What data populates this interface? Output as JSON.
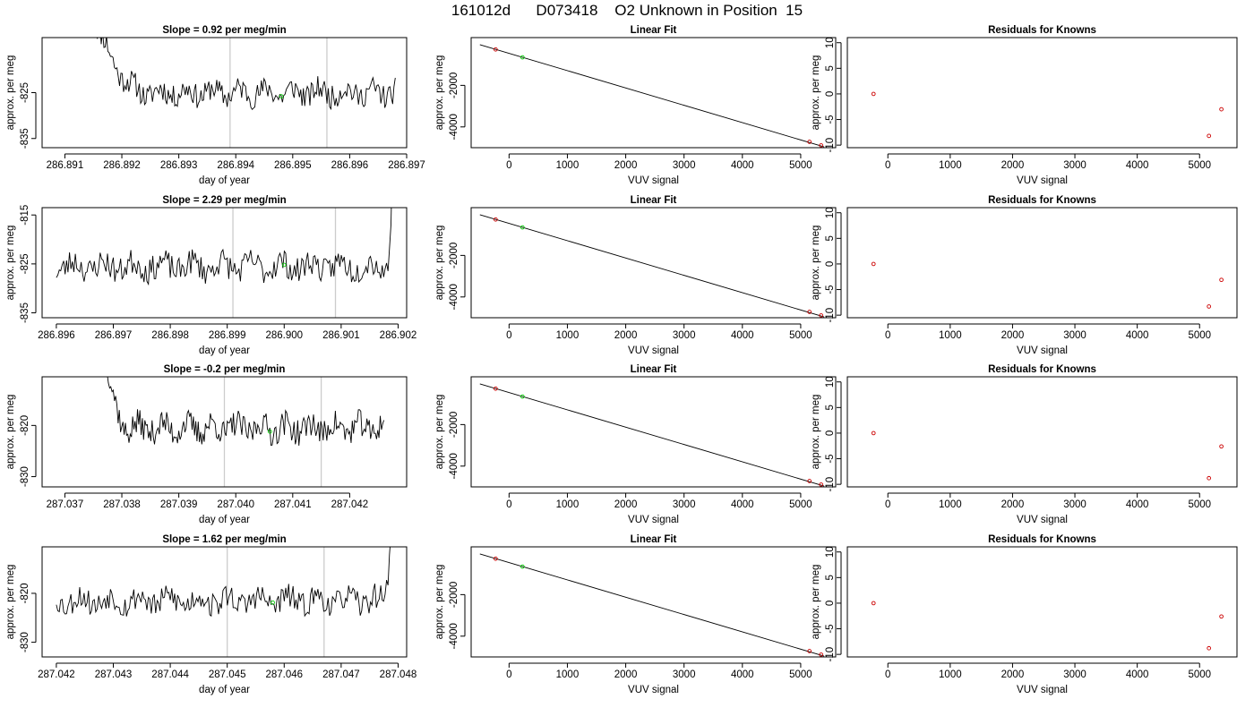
{
  "page_title": "161012d      D073418    O2 Unknown in Position  15",
  "colors": {
    "line": "#000000",
    "frame": "#000000",
    "vline": "#cccccc",
    "known_point": "#cc0000",
    "unknown_point": "#00cc00",
    "background": "#ffffff"
  },
  "chart_data": [
    {
      "type": "line",
      "row": 0,
      "col": 0,
      "title": "Slope =  0.92  per meg/min",
      "xlabel": "day of year",
      "ylabel": "approx. per meg",
      "xlim": [
        286.8906,
        286.897
      ],
      "ylim": [
        -837,
        -813
      ],
      "xticks": [
        286.891,
        286.892,
        286.893,
        286.894,
        286.895,
        286.896,
        286.897
      ],
      "xtick_labels": [
        "286.891",
        "286.892",
        "286.893",
        "286.894",
        "286.895",
        "286.896",
        "286.897"
      ],
      "yticks": [
        -835,
        -825
      ],
      "ytick_labels": [
        "-835",
        "-825"
      ],
      "vlines": [
        286.8939,
        286.8956
      ],
      "unknown_point": {
        "x": 286.8948,
        "y": -825.8
      },
      "trace": {
        "x_start": 286.8915,
        "x_end": 286.8968,
        "y_mid": -825.0,
        "y_amp": 2.6,
        "rise": {
          "from_x": 286.8915,
          "to_x": 286.89245,
          "y_start": -808
        },
        "tail_rise": null,
        "seed": 11
      }
    },
    {
      "type": "line",
      "row": 1,
      "col": 0,
      "title": "Slope =  2.29  per meg/min",
      "xlabel": "day of year",
      "ylabel": "approx. per meg",
      "xlim": [
        286.89575,
        286.90215
      ],
      "ylim": [
        -836,
        -813.5
      ],
      "xticks": [
        286.896,
        286.897,
        286.898,
        286.899,
        286.9,
        286.901,
        286.902
      ],
      "xtick_labels": [
        "286.896",
        "286.897",
        "286.898",
        "286.899",
        "286.900",
        "286.901",
        "286.902"
      ],
      "yticks": [
        -835,
        -825,
        -815
      ],
      "ytick_labels": [
        "-835",
        "-825",
        "-815"
      ],
      "vlines": [
        286.8991,
        286.9009
      ],
      "unknown_point": {
        "x": 286.9,
        "y": -825.2
      },
      "trace": {
        "x_start": 286.896,
        "x_end": 286.9019,
        "y_mid": -825.5,
        "y_amp": 2.7,
        "rise": null,
        "tail_rise": {
          "from_x": 286.9018,
          "y_end": -805
        },
        "seed": 23
      }
    },
    {
      "type": "line",
      "row": 2,
      "col": 0,
      "title": "Slope =  -0.2  per meg/min",
      "xlabel": "day of year",
      "ylabel": "approx. per meg",
      "xlim": [
        287.0366,
        287.043
      ],
      "ylim": [
        -832,
        -810.5
      ],
      "xticks": [
        287.037,
        287.038,
        287.039,
        287.04,
        287.041,
        287.042
      ],
      "xtick_labels": [
        "287.037",
        "287.038",
        "287.039",
        "287.040",
        "287.041",
        "287.042"
      ],
      "yticks": [
        -830,
        -820
      ],
      "ytick_labels": [
        "-830",
        "-820"
      ],
      "vlines": [
        287.0398,
        287.0415
      ],
      "unknown_point": {
        "x": 287.0406,
        "y": -821.2
      },
      "trace": {
        "x_start": 287.0377,
        "x_end": 287.0426,
        "y_mid": -820.5,
        "y_amp": 2.6,
        "rise": {
          "from_x": 287.0377,
          "to_x": 287.0381,
          "y_start": -805
        },
        "tail_rise": null,
        "seed": 37
      }
    },
    {
      "type": "line",
      "row": 3,
      "col": 0,
      "title": "Slope =  1.62  per meg/min",
      "xlabel": "day of year",
      "ylabel": "approx. per meg",
      "xlim": [
        287.04175,
        287.04815
      ],
      "ylim": [
        -833,
        -810.5
      ],
      "xticks": [
        287.042,
        287.043,
        287.044,
        287.045,
        287.046,
        287.047,
        287.048
      ],
      "xtick_labels": [
        "287.042",
        "287.043",
        "287.044",
        "287.045",
        "287.046",
        "287.047",
        "287.048"
      ],
      "yticks": [
        -830,
        -820
      ],
      "ytick_labels": [
        "-830",
        "-820"
      ],
      "vlines": [
        287.045,
        287.0467
      ],
      "unknown_point": {
        "x": 287.0458,
        "y": -821.9
      },
      "trace": {
        "x_start": 287.042,
        "x_end": 287.0479,
        "y_mid": -821.5,
        "y_amp": 2.6,
        "rise": null,
        "tail_rise": {
          "from_x": 287.0477,
          "y_end": -805
        },
        "seed": 53
      }
    },
    {
      "type": "scatter",
      "row": 0,
      "col": 1,
      "title": "Linear Fit",
      "xlabel": "VUV signal",
      "ylabel": "approx. per meg",
      "xlim": [
        -650,
        5600
      ],
      "ylim": [
        -5000,
        300
      ],
      "xticks": [
        0,
        1000,
        2000,
        3000,
        4000,
        5000
      ],
      "xtick_labels": [
        "0",
        "1000",
        "2000",
        "3000",
        "4000",
        "5000"
      ],
      "yticks": [
        -4000,
        -2000
      ],
      "ytick_labels": [
        "-4000",
        "-2000"
      ],
      "fit_line": {
        "x": [
          -500,
          5400
        ],
        "y": [
          -40,
          -4960
        ]
      },
      "known_points": [
        {
          "x": -230,
          "y": -270
        },
        {
          "x": 5150,
          "y": -4720
        },
        {
          "x": 5350,
          "y": -4890
        }
      ],
      "unknown_point": {
        "x": 230,
        "y": -650
      }
    },
    {
      "type": "scatter",
      "row": 1,
      "col": 1,
      "title": "Linear Fit",
      "xlabel": "VUV signal",
      "ylabel": "approx. per meg",
      "xlim": [
        -650,
        5600
      ],
      "ylim": [
        -5000,
        300
      ],
      "xticks": [
        0,
        1000,
        2000,
        3000,
        4000,
        5000
      ],
      "xtick_labels": [
        "0",
        "1000",
        "2000",
        "3000",
        "4000",
        "5000"
      ],
      "yticks": [
        -4000,
        -2000
      ],
      "ytick_labels": [
        "-4000",
        "-2000"
      ],
      "fit_line": {
        "x": [
          -500,
          5400
        ],
        "y": [
          -40,
          -4960
        ]
      },
      "known_points": [
        {
          "x": -230,
          "y": -270
        },
        {
          "x": 5150,
          "y": -4720
        },
        {
          "x": 5350,
          "y": -4890
        }
      ],
      "unknown_point": {
        "x": 230,
        "y": -650
      }
    },
    {
      "type": "scatter",
      "row": 2,
      "col": 1,
      "title": "Linear Fit",
      "xlabel": "VUV signal",
      "ylabel": "approx. per meg",
      "xlim": [
        -650,
        5600
      ],
      "ylim": [
        -5000,
        300
      ],
      "xticks": [
        0,
        1000,
        2000,
        3000,
        4000,
        5000
      ],
      "xtick_labels": [
        "0",
        "1000",
        "2000",
        "3000",
        "4000",
        "5000"
      ],
      "yticks": [
        -4000,
        -2000
      ],
      "ytick_labels": [
        "-4000",
        "-2000"
      ],
      "fit_line": {
        "x": [
          -500,
          5400
        ],
        "y": [
          -40,
          -4960
        ]
      },
      "known_points": [
        {
          "x": -230,
          "y": -270
        },
        {
          "x": 5150,
          "y": -4720
        },
        {
          "x": 5350,
          "y": -4890
        }
      ],
      "unknown_point": {
        "x": 230,
        "y": -650
      }
    },
    {
      "type": "scatter",
      "row": 3,
      "col": 1,
      "title": "Linear Fit",
      "xlabel": "VUV signal",
      "ylabel": "approx. per meg",
      "xlim": [
        -650,
        5600
      ],
      "ylim": [
        -5000,
        300
      ],
      "xticks": [
        0,
        1000,
        2000,
        3000,
        4000,
        5000
      ],
      "xtick_labels": [
        "0",
        "1000",
        "2000",
        "3000",
        "4000",
        "5000"
      ],
      "yticks": [
        -4000,
        -2000
      ],
      "ytick_labels": [
        "-4000",
        "-2000"
      ],
      "fit_line": {
        "x": [
          -500,
          5400
        ],
        "y": [
          -40,
          -4960
        ]
      },
      "known_points": [
        {
          "x": -230,
          "y": -270
        },
        {
          "x": 5150,
          "y": -4720
        },
        {
          "x": 5350,
          "y": -4890
        }
      ],
      "unknown_point": {
        "x": 230,
        "y": -650
      }
    },
    {
      "type": "scatter",
      "row": 0,
      "col": 2,
      "title": "Residuals for Knowns",
      "xlabel": "VUV signal",
      "ylabel": "approx. per meg",
      "xlim": [
        -650,
        5600
      ],
      "ylim": [
        -10.5,
        11
      ],
      "xticks": [
        0,
        1000,
        2000,
        3000,
        4000,
        5000
      ],
      "xtick_labels": [
        "0",
        "1000",
        "2000",
        "3000",
        "4000",
        "5000"
      ],
      "yticks": [
        -10,
        -5,
        0,
        5,
        10
      ],
      "ytick_labels": [
        "-10",
        "-5",
        "0",
        "5",
        "10"
      ],
      "known_points": [
        {
          "x": -230,
          "y": 0
        },
        {
          "x": 5150,
          "y": -8.2
        },
        {
          "x": 5350,
          "y": -3.0
        }
      ]
    },
    {
      "type": "scatter",
      "row": 1,
      "col": 2,
      "title": "Residuals for Knowns",
      "xlabel": "VUV signal",
      "ylabel": "approx. per meg",
      "xlim": [
        -650,
        5600
      ],
      "ylim": [
        -10.5,
        11
      ],
      "xticks": [
        0,
        1000,
        2000,
        3000,
        4000,
        5000
      ],
      "xtick_labels": [
        "0",
        "1000",
        "2000",
        "3000",
        "4000",
        "5000"
      ],
      "yticks": [
        -10,
        -5,
        0,
        5,
        10
      ],
      "ytick_labels": [
        "-10",
        "-5",
        "0",
        "5",
        "10"
      ],
      "known_points": [
        {
          "x": -230,
          "y": 0
        },
        {
          "x": 5150,
          "y": -8.3
        },
        {
          "x": 5350,
          "y": -3.1
        }
      ]
    },
    {
      "type": "scatter",
      "row": 2,
      "col": 2,
      "title": "Residuals for Knowns",
      "xlabel": "VUV signal",
      "ylabel": "approx. per meg",
      "xlim": [
        -650,
        5600
      ],
      "ylim": [
        -10.5,
        11
      ],
      "xticks": [
        0,
        1000,
        2000,
        3000,
        4000,
        5000
      ],
      "xtick_labels": [
        "0",
        "1000",
        "2000",
        "3000",
        "4000",
        "5000"
      ],
      "yticks": [
        -10,
        -5,
        0,
        5,
        10
      ],
      "ytick_labels": [
        "-10",
        "-5",
        "0",
        "5",
        "10"
      ],
      "known_points": [
        {
          "x": -230,
          "y": 0
        },
        {
          "x": 5150,
          "y": -8.8
        },
        {
          "x": 5350,
          "y": -2.6
        }
      ]
    },
    {
      "type": "scatter",
      "row": 3,
      "col": 2,
      "title": "Residuals for Knowns",
      "xlabel": "VUV signal",
      "ylabel": "approx. per meg",
      "xlim": [
        -650,
        5600
      ],
      "ylim": [
        -10.5,
        11
      ],
      "xticks": [
        0,
        1000,
        2000,
        3000,
        4000,
        5000
      ],
      "xtick_labels": [
        "0",
        "1000",
        "2000",
        "3000",
        "4000",
        "5000"
      ],
      "yticks": [
        -10,
        -5,
        0,
        5,
        10
      ],
      "ytick_labels": [
        "-10",
        "-5",
        "0",
        "5",
        "10"
      ],
      "known_points": [
        {
          "x": -230,
          "y": 0
        },
        {
          "x": 5150,
          "y": -8.8
        },
        {
          "x": 5350,
          "y": -2.6
        }
      ]
    }
  ]
}
